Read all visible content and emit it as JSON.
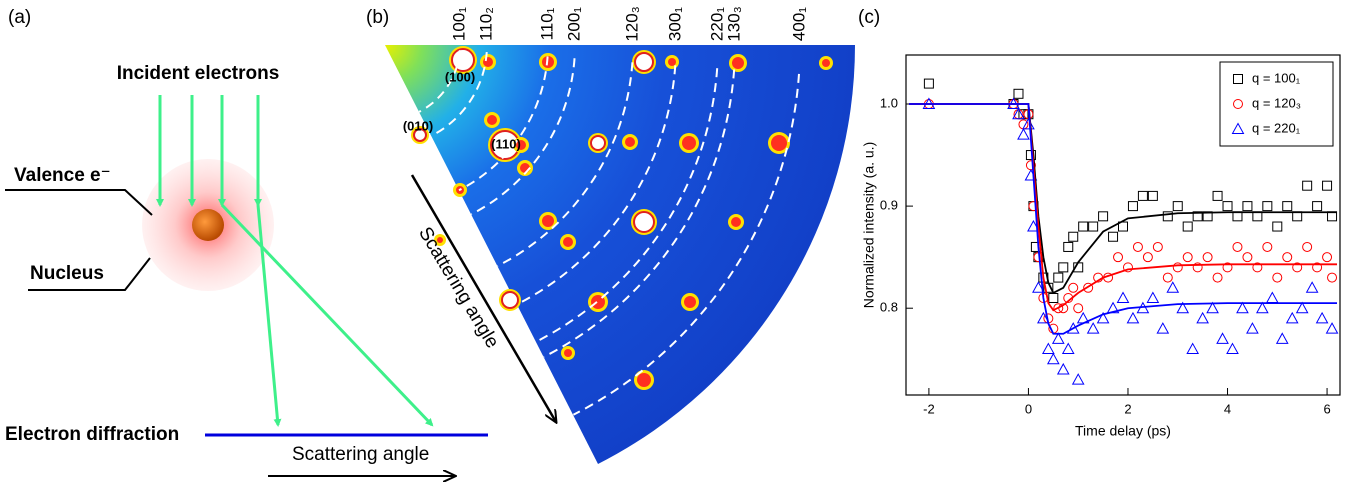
{
  "panels": {
    "a": {
      "label": "(a)",
      "incident": "Incident electrons",
      "valence": "Valence e⁻",
      "nucleus": "Nucleus",
      "diffraction": "Electron diffraction",
      "angle": "Scattering angle"
    },
    "b": {
      "label": "(b)",
      "rings": [
        "100₁",
        "110₂",
        "110₁",
        "200₁",
        "120₃",
        "300₁",
        "220₁",
        "130₃",
        "400₁"
      ],
      "spots": [
        "(100)",
        "(010)",
        "(110)"
      ],
      "angle": "Scattering angle"
    },
    "c": {
      "label": "(c)"
    }
  },
  "chart_data": {
    "type": "scatter",
    "x_label": "Time delay (ps)",
    "y_label": "Normalized intensity (a. u.)",
    "xlim": [
      -2.46,
      6.26
    ],
    "ylim": [
      0.715,
      1.048
    ],
    "xticks": [
      -2,
      0,
      2,
      4,
      6
    ],
    "yticks": [
      0.8,
      0.9,
      {
        "value": 1,
        "label": "1.0"
      }
    ],
    "series": [
      {
        "name": "q = 100₁",
        "color": "#000000",
        "marker": "square",
        "x": [
          -2,
          -0.3,
          -0.2,
          -0.1,
          0,
          0.05,
          0.1,
          0.15,
          0.2,
          0.3,
          0.4,
          0.5,
          0.6,
          0.7,
          0.8,
          0.9,
          1.0,
          1.1,
          1.3,
          1.5,
          1.7,
          1.9,
          2.1,
          2.3,
          2.5,
          2.8,
          3.0,
          3.2,
          3.4,
          3.6,
          3.8,
          4.0,
          4.2,
          4.4,
          4.6,
          4.8,
          5.0,
          5.2,
          5.4,
          5.6,
          5.8,
          6.0,
          6.1
        ],
        "values": [
          1.02,
          1.0,
          1.01,
          0.99,
          0.99,
          0.95,
          0.9,
          0.86,
          0.85,
          0.83,
          0.82,
          0.81,
          0.83,
          0.84,
          0.86,
          0.87,
          0.84,
          0.88,
          0.88,
          0.89,
          0.87,
          0.88,
          0.9,
          0.91,
          0.91,
          0.89,
          0.9,
          0.88,
          0.89,
          0.89,
          0.91,
          0.9,
          0.89,
          0.9,
          0.89,
          0.9,
          0.88,
          0.9,
          0.89,
          0.92,
          0.9,
          0.92,
          0.89
        ]
      },
      {
        "name": "q = 120₃",
        "color": "#ff0000",
        "marker": "circle",
        "x": [
          -2,
          -0.3,
          -0.2,
          -0.1,
          0,
          0.05,
          0.1,
          0.2,
          0.3,
          0.4,
          0.5,
          0.6,
          0.7,
          0.8,
          0.9,
          1.0,
          1.2,
          1.4,
          1.6,
          1.8,
          2.0,
          2.2,
          2.4,
          2.6,
          2.8,
          3.0,
          3.2,
          3.4,
          3.6,
          3.8,
          4.0,
          4.2,
          4.4,
          4.6,
          4.8,
          5.0,
          5.2,
          5.4,
          5.6,
          5.8,
          6.0,
          6.1
        ],
        "values": [
          1.0,
          1.0,
          0.99,
          0.98,
          0.99,
          0.94,
          0.9,
          0.85,
          0.81,
          0.79,
          0.78,
          0.8,
          0.8,
          0.81,
          0.82,
          0.8,
          0.82,
          0.83,
          0.83,
          0.85,
          0.84,
          0.86,
          0.85,
          0.86,
          0.83,
          0.84,
          0.85,
          0.84,
          0.85,
          0.83,
          0.84,
          0.86,
          0.85,
          0.84,
          0.86,
          0.83,
          0.85,
          0.84,
          0.86,
          0.84,
          0.85,
          0.83
        ]
      },
      {
        "name": "q = 220₁",
        "color": "#0000ff",
        "marker": "triangle",
        "x": [
          -2,
          -0.3,
          -0.2,
          -0.1,
          0,
          0.05,
          0.1,
          0.2,
          0.3,
          0.4,
          0.5,
          0.6,
          0.7,
          0.8,
          0.9,
          1.0,
          1.1,
          1.3,
          1.5,
          1.7,
          1.9,
          2.1,
          2.3,
          2.5,
          2.7,
          2.9,
          3.1,
          3.3,
          3.5,
          3.7,
          3.9,
          4.1,
          4.3,
          4.5,
          4.7,
          4.9,
          5.1,
          5.3,
          5.5,
          5.7,
          5.9,
          6.1
        ],
        "values": [
          1.0,
          1.0,
          0.99,
          0.97,
          0.98,
          0.93,
          0.88,
          0.82,
          0.79,
          0.76,
          0.75,
          0.77,
          0.74,
          0.76,
          0.78,
          0.73,
          0.79,
          0.78,
          0.79,
          0.8,
          0.81,
          0.79,
          0.8,
          0.81,
          0.78,
          0.82,
          0.8,
          0.76,
          0.79,
          0.8,
          0.77,
          0.76,
          0.8,
          0.78,
          0.8,
          0.81,
          0.77,
          0.79,
          0.8,
          0.82,
          0.79,
          0.78
        ]
      }
    ],
    "fit_x": [
      -2.4,
      -0.1,
      0.0,
      0.1,
      0.2,
      0.3,
      0.4,
      0.5,
      0.7,
      1.0,
      1.5,
      2.0,
      3.0,
      4.0,
      5.0,
      6.2
    ],
    "fits": [
      {
        "color": "#000000",
        "values": [
          1,
          1,
          1,
          0.95,
          0.89,
          0.85,
          0.825,
          0.815,
          0.82,
          0.845,
          0.875,
          0.888,
          0.893,
          0.894,
          0.894,
          0.894
        ]
      },
      {
        "color": "#ff0000",
        "values": [
          1,
          1,
          1,
          0.94,
          0.88,
          0.83,
          0.805,
          0.798,
          0.803,
          0.815,
          0.83,
          0.838,
          0.842,
          0.843,
          0.843,
          0.843
        ]
      },
      {
        "color": "#0000ff",
        "values": [
          1,
          1,
          1,
          0.93,
          0.86,
          0.81,
          0.785,
          0.775,
          0.775,
          0.783,
          0.794,
          0.8,
          0.804,
          0.805,
          0.805,
          0.805
        ]
      }
    ]
  }
}
